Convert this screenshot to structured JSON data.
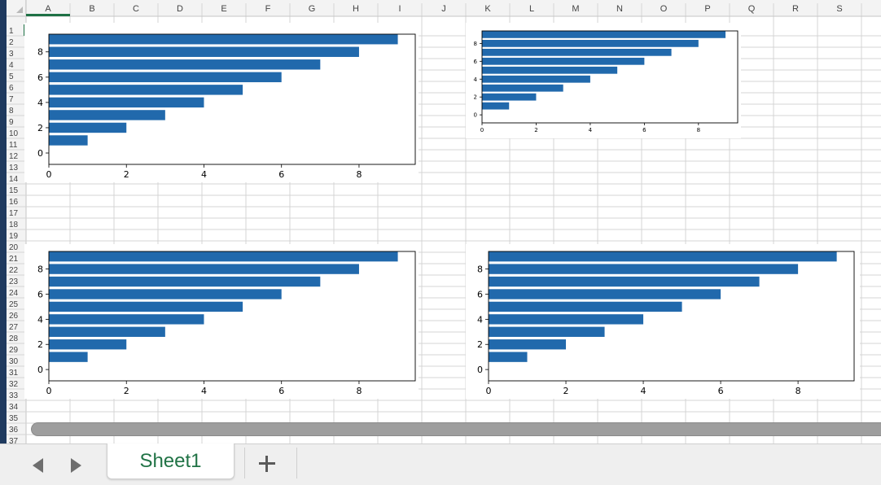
{
  "window": {
    "app": "Spreadsheet"
  },
  "grid": {
    "columns": [
      "A",
      "B",
      "C",
      "D",
      "E",
      "F",
      "G",
      "H",
      "I",
      "J",
      "K",
      "L",
      "M",
      "N",
      "O",
      "P",
      "Q",
      "R",
      "S"
    ],
    "rows": [
      "1",
      "2",
      "3",
      "4",
      "5",
      "6",
      "7",
      "8",
      "9",
      "10",
      "11",
      "12",
      "13",
      "14",
      "15",
      "16",
      "17",
      "18",
      "19",
      "20",
      "21",
      "22",
      "23",
      "24",
      "25",
      "26",
      "27",
      "28",
      "29",
      "30",
      "31",
      "32",
      "33",
      "34",
      "35",
      "36",
      "37"
    ],
    "selected_cell": "A1",
    "colors": {
      "header_bg": "#f3f3f3",
      "gridline": "#d4d4d4",
      "selection": "#1e7145",
      "header_text": "#444444"
    }
  },
  "chart_data": [
    {
      "type": "bar",
      "orientation": "horizontal",
      "y": [
        0,
        1,
        2,
        3,
        4,
        5,
        6,
        7,
        8,
        9
      ],
      "values": [
        0,
        1,
        2,
        3,
        4,
        5,
        6,
        7,
        8,
        9
      ],
      "xticks": [
        "0",
        "2",
        "4",
        "6",
        "8"
      ],
      "yticks": [
        "0",
        "2",
        "4",
        "6",
        "8"
      ],
      "xlim": [
        0,
        9.45
      ],
      "ylim": [
        -0.9,
        9.4
      ],
      "color": "#2169ac",
      "grid": false
    },
    {
      "type": "bar",
      "orientation": "horizontal",
      "y": [
        0,
        1,
        2,
        3,
        4,
        5,
        6,
        7,
        8,
        9
      ],
      "values": [
        0,
        1,
        2,
        3,
        4,
        5,
        6,
        7,
        8,
        9
      ],
      "xticks": [
        "0",
        "2",
        "4",
        "6",
        "8"
      ],
      "yticks": [
        "0",
        "2",
        "4",
        "6",
        "8"
      ],
      "xlim": [
        0,
        9.45
      ],
      "ylim": [
        -0.9,
        9.4
      ],
      "color": "#2169ac",
      "grid": false
    },
    {
      "type": "bar",
      "orientation": "horizontal",
      "y": [
        0,
        1,
        2,
        3,
        4,
        5,
        6,
        7,
        8,
        9
      ],
      "values": [
        0,
        1,
        2,
        3,
        4,
        5,
        6,
        7,
        8,
        9
      ],
      "xticks": [
        "0",
        "2",
        "4",
        "6",
        "8"
      ],
      "yticks": [
        "0",
        "2",
        "4",
        "6",
        "8"
      ],
      "xlim": [
        0,
        9.45
      ],
      "ylim": [
        -0.9,
        9.4
      ],
      "color": "#2169ac",
      "grid": false
    },
    {
      "type": "bar",
      "orientation": "horizontal",
      "y": [
        0,
        1,
        2,
        3,
        4,
        5,
        6,
        7,
        8,
        9
      ],
      "values": [
        0,
        1,
        2,
        3,
        4,
        5,
        6,
        7,
        8,
        9
      ],
      "xticks": [
        "0",
        "2",
        "4",
        "6",
        "8"
      ],
      "yticks": [
        "0",
        "2",
        "4",
        "6",
        "8"
      ],
      "xlim": [
        0,
        9.45
      ],
      "ylim": [
        -0.9,
        9.4
      ],
      "color": "#2169ac",
      "grid": false
    }
  ],
  "tabs": {
    "sheets": [
      {
        "label": "Sheet1",
        "active": true
      }
    ],
    "add_icon": "plus-icon",
    "prev_icon": "triangle-left-icon",
    "next_icon": "triangle-right-icon"
  },
  "scrollbar": {
    "horizontal": true
  }
}
